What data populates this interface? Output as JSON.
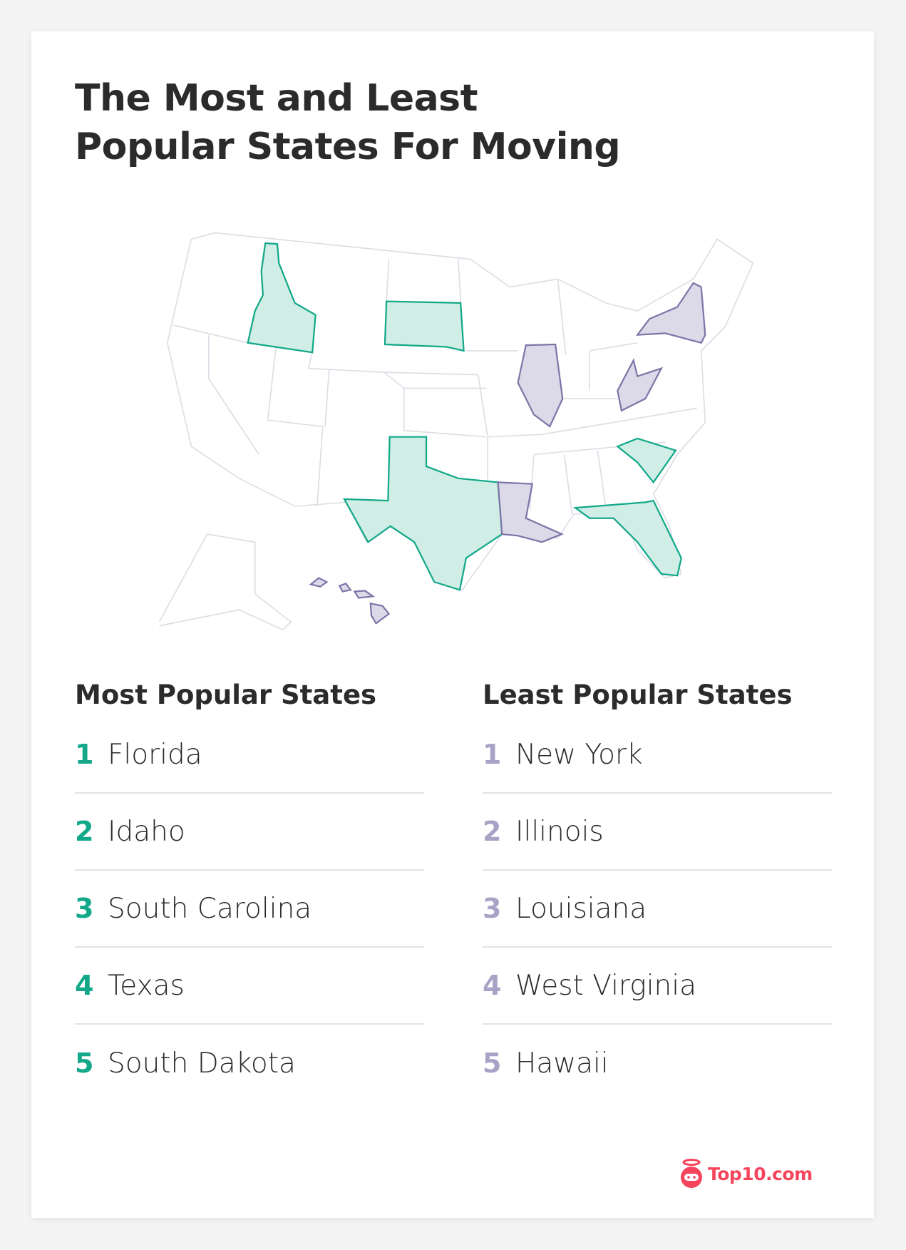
{
  "title_lines": [
    "The Most and Least",
    "Popular States For Moving"
  ],
  "colors": {
    "most": "#12a889",
    "most_fill": "#d0ede6",
    "least": "#7b76a8",
    "least_fill": "#dcdae8",
    "logo": "#f5455c"
  },
  "most": {
    "heading": "Most Popular States",
    "items": [
      {
        "rank": "1",
        "name": "Florida"
      },
      {
        "rank": "2",
        "name": "Idaho"
      },
      {
        "rank": "3",
        "name": "South Carolina"
      },
      {
        "rank": "4",
        "name": "Texas"
      },
      {
        "rank": "5",
        "name": "South Dakota"
      }
    ]
  },
  "least": {
    "heading": "Least Popular States",
    "items": [
      {
        "rank": "1",
        "name": "New York"
      },
      {
        "rank": "2",
        "name": "Illinois"
      },
      {
        "rank": "3",
        "name": "Louisiana"
      },
      {
        "rank": "4",
        "name": "West Virginia"
      },
      {
        "rank": "5",
        "name": "Hawaii"
      }
    ]
  },
  "logo": {
    "text": "Top10.com",
    "icon": "robot-halo-icon"
  }
}
